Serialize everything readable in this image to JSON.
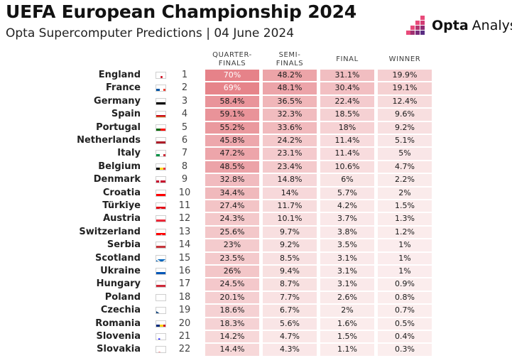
{
  "header": {
    "title": "UEFA European Championship 2024",
    "subtitle": "Opta Supercomputer Predictions | 04 June 2024",
    "logo_bold": "Opta",
    "logo_light": "Analyst"
  },
  "colors": {
    "heat_max": "#e57f86",
    "heat_min": "#fbeeee",
    "logo_pink": "#e84a7a",
    "logo_purple": "#5a2d82"
  },
  "chart_data": {
    "type": "table",
    "title": "UEFA European Championship 2024",
    "subtitle": "Opta Supercomputer Predictions | 04 June 2024",
    "columns": [
      "QUARTER-\nFINALS",
      "SEMI-\nFINALS",
      "FINAL",
      "WINNER"
    ],
    "rows": [
      {
        "team": "England",
        "rank": "1",
        "flag": "england-flag-icon",
        "values": [
          "70%",
          "48.2%",
          "31.1%",
          "19.9%"
        ]
      },
      {
        "team": "France",
        "rank": "2",
        "flag": "france-flag-icon",
        "values": [
          "69%",
          "48.1%",
          "30.4%",
          "19.1%"
        ]
      },
      {
        "team": "Germany",
        "rank": "3",
        "flag": "germany-flag-icon",
        "values": [
          "58.4%",
          "36.5%",
          "22.4%",
          "12.4%"
        ]
      },
      {
        "team": "Spain",
        "rank": "4",
        "flag": "spain-flag-icon",
        "values": [
          "59.1%",
          "32.3%",
          "18.5%",
          "9.6%"
        ]
      },
      {
        "team": "Portugal",
        "rank": "5",
        "flag": "portugal-flag-icon",
        "values": [
          "55.2%",
          "33.6%",
          "18%",
          "9.2%"
        ]
      },
      {
        "team": "Netherlands",
        "rank": "6",
        "flag": "netherlands-flag-icon",
        "values": [
          "45.8%",
          "24.2%",
          "11.4%",
          "5.1%"
        ]
      },
      {
        "team": "Italy",
        "rank": "7",
        "flag": "italy-flag-icon",
        "values": [
          "47.2%",
          "23.1%",
          "11.4%",
          "5%"
        ]
      },
      {
        "team": "Belgium",
        "rank": "8",
        "flag": "belgium-flag-icon",
        "values": [
          "48.5%",
          "23.4%",
          "10.6%",
          "4.7%"
        ]
      },
      {
        "team": "Denmark",
        "rank": "9",
        "flag": "denmark-flag-icon",
        "values": [
          "32.8%",
          "14.8%",
          "6%",
          "2.2%"
        ]
      },
      {
        "team": "Croatia",
        "rank": "10",
        "flag": "croatia-flag-icon",
        "values": [
          "34.4%",
          "14%",
          "5.7%",
          "2%"
        ]
      },
      {
        "team": "Türkiye",
        "rank": "11",
        "flag": "turkiye-flag-icon",
        "values": [
          "27.4%",
          "11.7%",
          "4.2%",
          "1.5%"
        ]
      },
      {
        "team": "Austria",
        "rank": "12",
        "flag": "austria-flag-icon",
        "values": [
          "24.3%",
          "10.1%",
          "3.7%",
          "1.3%"
        ]
      },
      {
        "team": "Switzerland",
        "rank": "13",
        "flag": "switzerland-flag-icon",
        "values": [
          "25.6%",
          "9.7%",
          "3.8%",
          "1.2%"
        ]
      },
      {
        "team": "Serbia",
        "rank": "14",
        "flag": "serbia-flag-icon",
        "values": [
          "23%",
          "9.2%",
          "3.5%",
          "1%"
        ]
      },
      {
        "team": "Scotland",
        "rank": "15",
        "flag": "scotland-flag-icon",
        "values": [
          "23.5%",
          "8.5%",
          "3.1%",
          "1%"
        ]
      },
      {
        "team": "Ukraine",
        "rank": "16",
        "flag": "ukraine-flag-icon",
        "values": [
          "26%",
          "9.4%",
          "3.1%",
          "1%"
        ]
      },
      {
        "team": "Hungary",
        "rank": "17",
        "flag": "hungary-flag-icon",
        "values": [
          "24.5%",
          "8.7%",
          "3.1%",
          "0.9%"
        ]
      },
      {
        "team": "Poland",
        "rank": "18",
        "flag": "poland-flag-icon",
        "values": [
          "20.1%",
          "7.7%",
          "2.6%",
          "0.8%"
        ]
      },
      {
        "team": "Czechia",
        "rank": "19",
        "flag": "czechia-flag-icon",
        "values": [
          "18.6%",
          "6.7%",
          "2%",
          "0.7%"
        ]
      },
      {
        "team": "Romania",
        "rank": "20",
        "flag": "romania-flag-icon",
        "values": [
          "18.3%",
          "5.6%",
          "1.6%",
          "0.5%"
        ]
      },
      {
        "team": "Slovenia",
        "rank": "21",
        "flag": "slovenia-flag-icon",
        "values": [
          "14.2%",
          "4.7%",
          "1.5%",
          "0.4%"
        ]
      },
      {
        "team": "Slovakia",
        "rank": "22",
        "flag": "slovakia-flag-icon",
        "values": [
          "14.4%",
          "4.3%",
          "1.1%",
          "0.3%"
        ]
      }
    ]
  }
}
